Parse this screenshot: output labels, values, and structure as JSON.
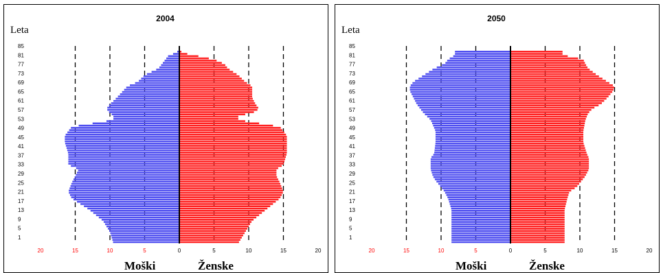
{
  "colors": {
    "male": "#4f4ff0",
    "female": "#ff2222",
    "tick_red": "#ff0000",
    "tick_black": "#000000"
  },
  "labels": {
    "male": "Moški",
    "female": "Ženske"
  },
  "chart_data": [
    {
      "type": "bar",
      "orientation": "horizontal-pyramid",
      "title": "2004",
      "ylabel": "Leta",
      "xlim": [
        -20,
        20
      ],
      "x_ticks": [
        "20",
        "15",
        "10",
        "5",
        "0",
        "5",
        "10",
        "15",
        "20"
      ],
      "x_tick_colors": [
        "red",
        "red",
        "red",
        "red",
        "black",
        "black",
        "black",
        "black",
        "black"
      ],
      "y_tick_labels": [
        "85",
        "81",
        "77",
        "73",
        "69",
        "65",
        "61",
        "57",
        "53",
        "49",
        "45",
        "41",
        "37",
        "33",
        "29",
        "25",
        "21",
        "17",
        "13",
        "9",
        "5",
        "1"
      ],
      "gridlines_dashed_at": [
        -15,
        -10,
        -5,
        5,
        10,
        15
      ],
      "age_points": [
        0,
        5,
        10,
        15,
        20,
        23,
        27,
        30,
        33,
        35,
        40,
        45,
        48,
        52,
        55,
        57,
        58,
        60,
        62,
        65,
        70,
        72,
        75,
        78,
        80,
        82,
        84,
        85
      ],
      "series": [
        {
          "name": "Moški",
          "values": [
            9.5,
            10,
            11,
            13,
            15.5,
            16,
            15.5,
            15,
            14.5,
            16,
            16,
            16.5,
            16.5,
            15.5,
            9.5,
            9.5,
            10,
            10.5,
            10,
            9,
            7.5,
            6,
            5,
            3,
            2.5,
            2,
            1.5,
            0.3
          ]
        },
        {
          "name": "Ženske",
          "values": [
            8.5,
            9.5,
            10.5,
            12.5,
            14.5,
            15,
            14.5,
            14,
            14,
            15,
            15.5,
            15.5,
            15.5,
            14.5,
            8.5,
            8.5,
            10.5,
            11.5,
            11,
            10.5,
            10.5,
            9.5,
            8.5,
            7,
            6.5,
            5,
            2,
            0.3
          ]
        }
      ]
    },
    {
      "type": "bar",
      "orientation": "horizontal-pyramid",
      "title": "2050",
      "ylabel": "Leta",
      "xlim": [
        -20,
        20
      ],
      "x_ticks": [
        "20",
        "15",
        "10",
        "5",
        "0",
        "5",
        "10",
        "15",
        "20"
      ],
      "x_tick_colors": [
        "red",
        "red",
        "red",
        "red",
        "black",
        "black",
        "black",
        "black",
        "black"
      ],
      "y_tick_labels": [
        "85",
        "81",
        "77",
        "73",
        "69",
        "65",
        "61",
        "57",
        "53",
        "49",
        "45",
        "41",
        "37",
        "33",
        "29",
        "25",
        "21",
        "17",
        "13",
        "9",
        "5",
        "1"
      ],
      "gridlines_dashed_at": [
        -15,
        -10,
        -5,
        5,
        10,
        15
      ],
      "age_points": [
        0,
        5,
        10,
        15,
        20,
        23,
        25,
        28,
        30,
        33,
        35,
        38,
        40,
        45,
        50,
        55,
        58,
        60,
        62,
        65,
        68,
        70,
        72,
        75,
        78,
        80,
        82,
        84
      ],
      "series": [
        {
          "name": "Moški",
          "values": [
            8.5,
            8.5,
            8.5,
            8.5,
            9,
            9.5,
            10,
            10.8,
            11.2,
            11.5,
            11.5,
            11.5,
            11,
            10.8,
            10.8,
            11.5,
            12.5,
            13,
            13.5,
            14,
            14.5,
            14.5,
            14,
            12.5,
            11,
            9.5,
            9,
            8
          ]
        },
        {
          "name": "Ženske",
          "values": [
            7.8,
            7.8,
            7.8,
            7.8,
            8.2,
            8.5,
            9.5,
            10.3,
            10.8,
            11.3,
            11.3,
            11.3,
            11,
            10.5,
            10.5,
            10.8,
            11.2,
            11.8,
            13,
            14,
            14.8,
            15,
            14,
            12.5,
            11.2,
            10.8,
            10.5,
            7.5
          ]
        }
      ]
    }
  ]
}
